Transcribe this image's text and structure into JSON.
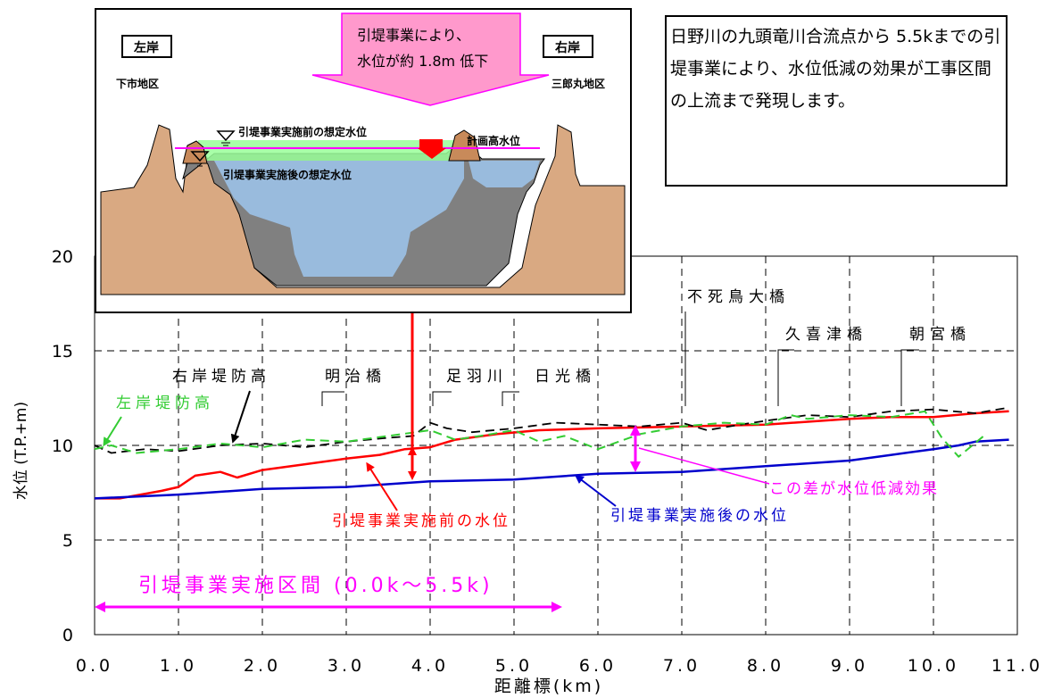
{
  "info_text": "日野川の九頭竜川合流点から 5.5kまでの引堤事業により、水位低減の効果が工事区間の上流まで発現します。",
  "inset": {
    "left_bank_label": "左岸",
    "left_area": "下市地区",
    "right_bank_label": "右岸",
    "right_area": "三郎丸地区",
    "arrow_text_1": "引堤事業により、",
    "arrow_text_2": "水位が約 1.8m 低下",
    "before_level": "引堤事業実施前の想定水位",
    "after_level": "引堤事業実施後の想定水位",
    "plan_level": "計画高水位"
  },
  "annotations": {
    "right_levee": "右岸堤防高",
    "left_levee": "左岸堤防高",
    "before_line": "引堤事業実施前の水位",
    "after_line": "引堤事業実施後の水位",
    "difference": "この差が水位低減効果",
    "section": "引堤事業実施区間 (0.0k～5.5k)"
  },
  "bridges": [
    "明治橋",
    "足羽川",
    "日光橋",
    "不死鳥大橋",
    "久喜津橋",
    "朝宮橋"
  ],
  "colors": {
    "before": "#ff0000",
    "after": "#0000cc",
    "left_levee": "#33cc33",
    "right_levee": "#000000",
    "magenta": "#ff00ff",
    "callout_fill": "#ff99cc",
    "water": "#99bbdd",
    "ground": "#d9a982",
    "excavated": "#808080"
  },
  "chart_data": {
    "type": "line",
    "xlabel": "距離標(km)",
    "ylabel": "水位 (T.P.+m)",
    "xlim": [
      0,
      11
    ],
    "ylim": [
      0,
      20
    ],
    "x_ticks": [
      "0.0",
      "1.0",
      "2.0",
      "3.0",
      "4.0",
      "5.0",
      "6.0",
      "7.0",
      "8.0",
      "9.0",
      "10.0",
      "11.0"
    ],
    "y_ticks": [
      "0",
      "5",
      "10",
      "15",
      "20"
    ],
    "grid": true,
    "series": [
      {
        "name": "引堤事業実施前の水位",
        "x": [
          0,
          0.3,
          0.8,
          1.0,
          1.2,
          1.5,
          1.7,
          2.0,
          2.5,
          3.0,
          3.4,
          3.7,
          4.0,
          4.3,
          4.8,
          5.3,
          6.0,
          7.0,
          8.0,
          9.0,
          9.5,
          10.0,
          10.5,
          10.9
        ],
        "y": [
          7.2,
          7.2,
          7.6,
          7.8,
          8.4,
          8.6,
          8.3,
          8.7,
          9.0,
          9.3,
          9.5,
          9.8,
          9.9,
          10.3,
          10.6,
          10.8,
          10.9,
          11.0,
          11.1,
          11.4,
          11.5,
          11.5,
          11.7,
          11.8
        ]
      },
      {
        "name": "引堤事業実施後の水位",
        "x": [
          0,
          1.0,
          2.0,
          3.0,
          4.0,
          5.0,
          6.0,
          7.0,
          8.0,
          9.0,
          9.5,
          10.0,
          10.3,
          10.5,
          10.9
        ],
        "y": [
          7.2,
          7.4,
          7.7,
          7.8,
          8.1,
          8.2,
          8.5,
          8.6,
          8.9,
          9.2,
          9.5,
          9.8,
          10.0,
          10.2,
          10.3
        ]
      },
      {
        "name": "右岸堤防高",
        "x": [
          0,
          0.2,
          0.6,
          1.0,
          1.5,
          2.0,
          2.5,
          3.0,
          3.5,
          3.8,
          4.0,
          4.2,
          4.5,
          5.0,
          5.5,
          6.0,
          6.5,
          7.0,
          7.3,
          7.7,
          8.0,
          8.5,
          9.0,
          9.5,
          10.0,
          10.5,
          10.9
        ],
        "y": [
          10.0,
          9.6,
          9.8,
          9.7,
          10.0,
          10.1,
          9.9,
          10.2,
          10.4,
          10.5,
          11.2,
          10.9,
          10.7,
          10.9,
          11.2,
          11.1,
          11.0,
          11.2,
          10.8,
          11.1,
          11.3,
          11.6,
          11.5,
          11.8,
          11.9,
          11.7,
          12.0
        ]
      },
      {
        "name": "左岸堤防高",
        "x": [
          0,
          0.2,
          0.5,
          1.0,
          1.5,
          2.0,
          2.5,
          3.0,
          3.5,
          4.0,
          4.3,
          4.6,
          5.0,
          5.3,
          5.6,
          6.0,
          6.5,
          7.0,
          7.5,
          8.0,
          8.3,
          8.5,
          9.0,
          9.5,
          9.9,
          10.1,
          10.3,
          10.6
        ],
        "y": [
          9.8,
          10.0,
          9.6,
          9.8,
          10.1,
          9.9,
          10.3,
          10.2,
          10.5,
          10.8,
          10.3,
          10.5,
          10.8,
          10.2,
          10.5,
          9.8,
          10.6,
          11.0,
          11.2,
          11.1,
          11.6,
          11.4,
          11.6,
          11.5,
          11.8,
          10.4,
          9.4,
          10.5
        ]
      }
    ]
  }
}
